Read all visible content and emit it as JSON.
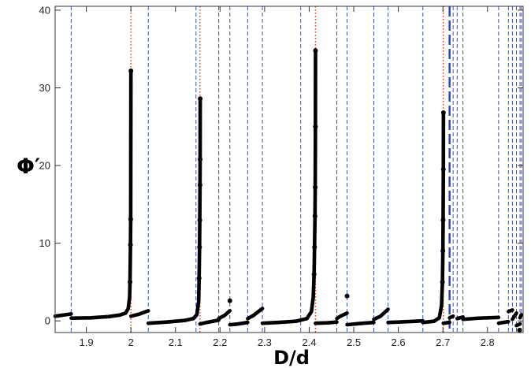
{
  "chart_data": {
    "type": "scatter",
    "xlabel": "D/d",
    "ylabel": "Φ′",
    "xlim": [
      1.83,
      2.88
    ],
    "ylim": [
      -1.5,
      40.5
    ],
    "grid": false,
    "x_ticks": [
      1.9,
      2.0,
      2.1,
      2.2,
      2.3,
      2.4,
      2.5,
      2.6,
      2.7,
      2.8
    ],
    "x_tick_labels": [
      "1.9",
      "2",
      "2.1",
      "2.2",
      "2.3",
      "2.4",
      "2.5",
      "2.6",
      "2.7",
      "2.8"
    ],
    "y_ticks": [
      0,
      10,
      20,
      30,
      40
    ],
    "y_tick_labels": [
      "0",
      "10",
      "20",
      "30",
      "40"
    ],
    "blue_dashed_lines_x": [
      1.866,
      2.039,
      2.146,
      2.197,
      2.222,
      2.262,
      2.295,
      2.381,
      2.462,
      2.485,
      2.545,
      2.577,
      2.655,
      2.723,
      2.732,
      2.745,
      2.825,
      2.847,
      2.856,
      2.865,
      2.873,
      2.876
    ],
    "red_dotted_lines_x": [
      2.0,
      2.155,
      2.414,
      2.701
    ],
    "wide_dash_line_x": 2.715,
    "series": [
      {
        "color": "#000000",
        "segments": [
          [
            [
              1.83,
              0.6
            ],
            [
              1.866,
              0.9
            ]
          ],
          [
            [
              1.866,
              0.35
            ],
            [
              1.91,
              0.4
            ],
            [
              1.95,
              0.55
            ],
            [
              1.975,
              0.75
            ],
            [
              1.988,
              1.0
            ],
            [
              1.994,
              1.6
            ],
            [
              1.997,
              3.0
            ],
            [
              1.998,
              5.0
            ],
            [
              1.999,
              9.8
            ],
            [
              1.9995,
              13.1
            ],
            [
              2.0,
              32.2
            ]
          ],
          [
            [
              2.0,
              0.6
            ],
            [
              2.02,
              0.9
            ],
            [
              2.039,
              1.3
            ]
          ],
          [
            [
              2.039,
              -0.3
            ],
            [
              2.08,
              -0.15
            ],
            [
              2.12,
              0.05
            ],
            [
              2.14,
              0.3
            ],
            [
              2.148,
              0.8
            ],
            [
              2.152,
              2.5
            ],
            [
              2.153,
              5.5
            ],
            [
              2.154,
              9.5
            ],
            [
              2.1545,
              13.0
            ],
            [
              2.155,
              17.5
            ],
            [
              2.1553,
              20.8
            ],
            [
              2.1555,
              28.6
            ]
          ],
          [
            [
              2.155,
              -0.4
            ],
            [
              2.17,
              -0.2
            ],
            [
              2.197,
              0.1
            ]
          ],
          [
            [
              2.197,
              0.3
            ],
            [
              2.21,
              0.7
            ],
            [
              2.222,
              1.3
            ]
          ],
          [
            [
              2.222,
              -0.5
            ],
            [
              2.24,
              -0.4
            ],
            [
              2.262,
              -0.2
            ]
          ],
          [
            [
              2.262,
              0.3
            ],
            [
              2.275,
              0.7
            ],
            [
              2.295,
              1.6
            ]
          ],
          [
            [
              2.295,
              -0.3
            ],
            [
              2.33,
              -0.2
            ],
            [
              2.37,
              -0.05
            ],
            [
              2.395,
              0.3
            ],
            [
              2.405,
              1.2
            ],
            [
              2.409,
              3.0
            ],
            [
              2.411,
              6.0
            ],
            [
              2.412,
              9.5
            ],
            [
              2.413,
              13.5
            ],
            [
              2.4135,
              17.2
            ],
            [
              2.414,
              25.0
            ],
            [
              2.4142,
              34.8
            ]
          ],
          [
            [
              2.414,
              -0.3
            ],
            [
              2.44,
              -0.25
            ],
            [
              2.462,
              -0.15
            ]
          ],
          [
            [
              2.462,
              0.3
            ],
            [
              2.47,
              0.6
            ],
            [
              2.485,
              1.0
            ]
          ],
          [
            [
              2.485,
              -0.5
            ],
            [
              2.51,
              -0.35
            ],
            [
              2.545,
              -0.2
            ]
          ],
          [
            [
              2.545,
              0.2
            ],
            [
              2.56,
              0.6
            ],
            [
              2.577,
              1.5
            ]
          ],
          [
            [
              2.577,
              -0.2
            ],
            [
              2.62,
              -0.1
            ],
            [
              2.655,
              0.0
            ]
          ],
          [
            [
              2.655,
              -0.2
            ],
            [
              2.68,
              -0.05
            ],
            [
              2.692,
              0.4
            ],
            [
              2.697,
              2.0
            ],
            [
              2.699,
              5.0
            ],
            [
              2.7,
              9.0
            ],
            [
              2.7005,
              13.0
            ],
            [
              2.701,
              19.5
            ],
            [
              2.7012,
              26.8
            ]
          ],
          [
            [
              2.701,
              -0.3
            ],
            [
              2.715,
              -0.2
            ]
          ],
          [
            [
              2.715,
              0.4
            ],
            [
              2.723,
              0.6
            ]
          ],
          [
            [
              2.732,
              0.3
            ],
            [
              2.745,
              0.5
            ]
          ],
          [
            [
              2.745,
              0.2
            ],
            [
              2.78,
              0.35
            ],
            [
              2.825,
              0.45
            ]
          ],
          [
            [
              2.825,
              -0.3
            ],
            [
              2.847,
              -0.1
            ]
          ],
          [
            [
              2.847,
              1.2
            ],
            [
              2.856,
              1.4
            ]
          ],
          [
            [
              2.856,
              0.2
            ],
            [
              2.865,
              1.0
            ]
          ],
          [
            [
              2.865,
              -0.6
            ],
            [
              2.873,
              -0.4
            ]
          ],
          [
            [
              2.873,
              0.4
            ],
            [
              2.876,
              0.8
            ]
          ]
        ],
        "isolated_points": [
          [
            2.222,
            2.6
          ],
          [
            2.485,
            3.2
          ],
          [
            2.872,
            -1.2
          ]
        ]
      }
    ]
  }
}
